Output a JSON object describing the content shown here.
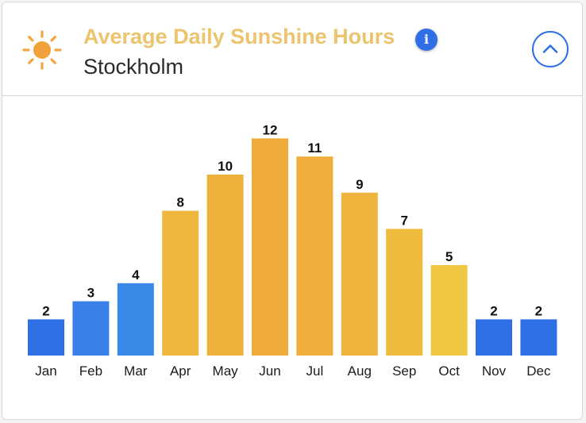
{
  "header": {
    "title": "Average Daily Sunshine Hours",
    "city": "Stockholm",
    "info_label": "i",
    "icons": {
      "sun": "sun-icon",
      "info": "info-icon",
      "collapse": "chevron-up-icon"
    }
  },
  "colors": {
    "title": "#ecc46e",
    "accent_blue": "#2f6fe6",
    "sun": "#f2a03a",
    "sun_rays": "#f4a53d"
  },
  "chart_data": {
    "type": "bar",
    "title": "Average Daily Sunshine Hours",
    "subtitle": "Stockholm",
    "categories": [
      "Jan",
      "Feb",
      "Mar",
      "Apr",
      "May",
      "Jun",
      "Jul",
      "Aug",
      "Sep",
      "Oct",
      "Nov",
      "Dec"
    ],
    "values": [
      2,
      3,
      4,
      8,
      10,
      12,
      11,
      9,
      7,
      5,
      2,
      2
    ],
    "bar_colors": [
      "#2f6fe6",
      "#3a7ee8",
      "#3b89e6",
      "#eeb83e",
      "#eeb13c",
      "#eeaa3b",
      "#eeae3c",
      "#eeb43d",
      "#eebb3f",
      "#efc743",
      "#2f6fe6",
      "#2f6fe6"
    ],
    "data_labels": true,
    "grid": false,
    "xlabel": "",
    "ylabel": "",
    "ylim": [
      0,
      12
    ]
  }
}
